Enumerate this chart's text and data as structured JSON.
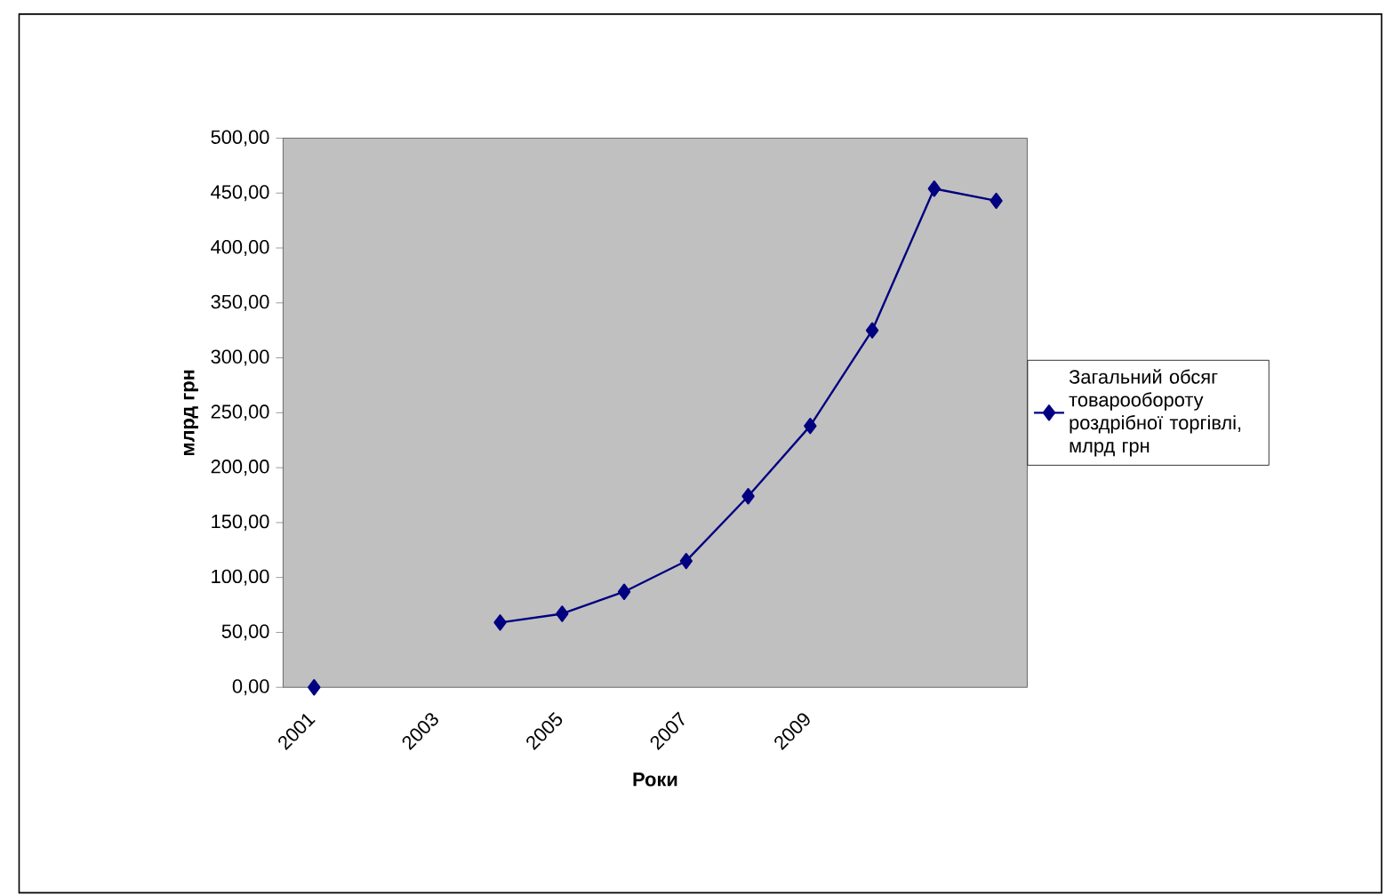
{
  "chart_data": {
    "type": "line",
    "xlabel": "Роки",
    "ylabel": "млрд грн",
    "categories": [
      "2001",
      null,
      "2003",
      null,
      "2005",
      null,
      "2007",
      null,
      "2009",
      null,
      null,
      null
    ],
    "series": [
      {
        "name": "Загальний обсяг товарообороту роздрібної торгівлі, млрд грн",
        "color": "#000080",
        "values": [
          0,
          null,
          null,
          59,
          67,
          87,
          115,
          174,
          238,
          325,
          454,
          443
        ]
      }
    ],
    "ylim": [
      0,
      500
    ],
    "yticks": [
      {
        "value": 0,
        "label": "0,00"
      },
      {
        "value": 50,
        "label": "50,00"
      },
      {
        "value": 100,
        "label": "100,00"
      },
      {
        "value": 150,
        "label": "150,00"
      },
      {
        "value": 200,
        "label": "200,00"
      },
      {
        "value": 250,
        "label": "250,00"
      },
      {
        "value": 300,
        "label": "300,00"
      },
      {
        "value": 350,
        "label": "350,00"
      },
      {
        "value": 400,
        "label": "400,00"
      },
      {
        "value": 450,
        "label": "450,00"
      },
      {
        "value": 500,
        "label": "500,00"
      }
    ],
    "grid": false,
    "legend": "right",
    "marker": "diamond",
    "line_style": "solid"
  }
}
